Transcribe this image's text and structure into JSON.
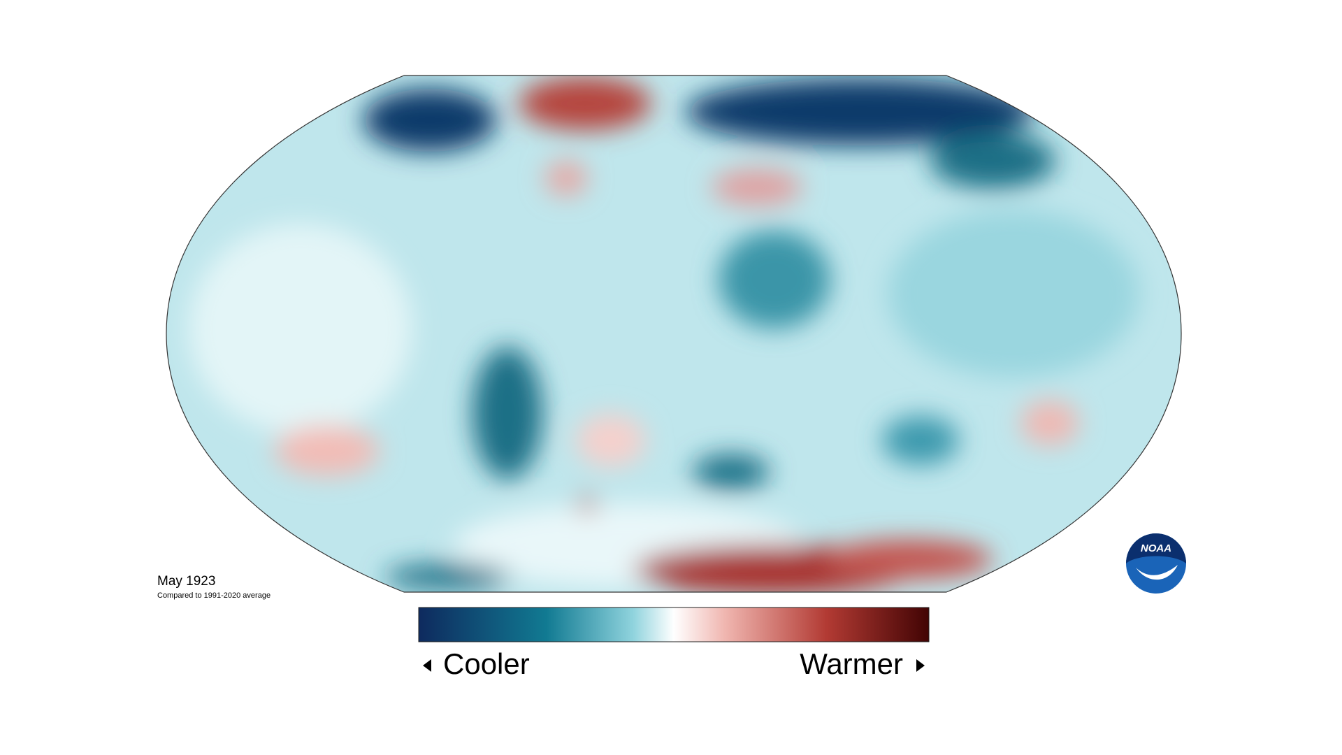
{
  "map": {
    "caption": {
      "title": "May 1923",
      "subtitle": "Compared to 1991-2020 average"
    },
    "legend": {
      "low": "Cooler",
      "high": "Warmer"
    },
    "logo": "NOAA"
  }
}
